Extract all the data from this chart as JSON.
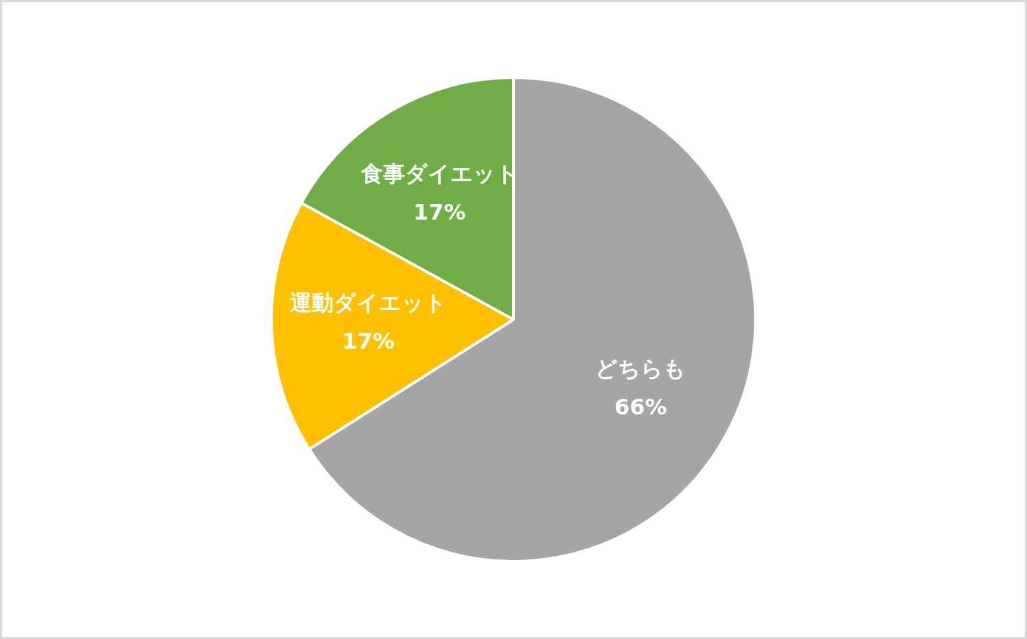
{
  "chart_data": {
    "type": "pie",
    "categories": [
      "どちらも",
      "運動ダイエット",
      "食事ダイエット"
    ],
    "values": [
      66,
      17,
      17
    ],
    "colors": [
      "#a5a5a5",
      "#ffc000",
      "#70ad47"
    ],
    "value_labels": [
      "66%",
      "17%",
      "17%"
    ],
    "legend": false
  }
}
